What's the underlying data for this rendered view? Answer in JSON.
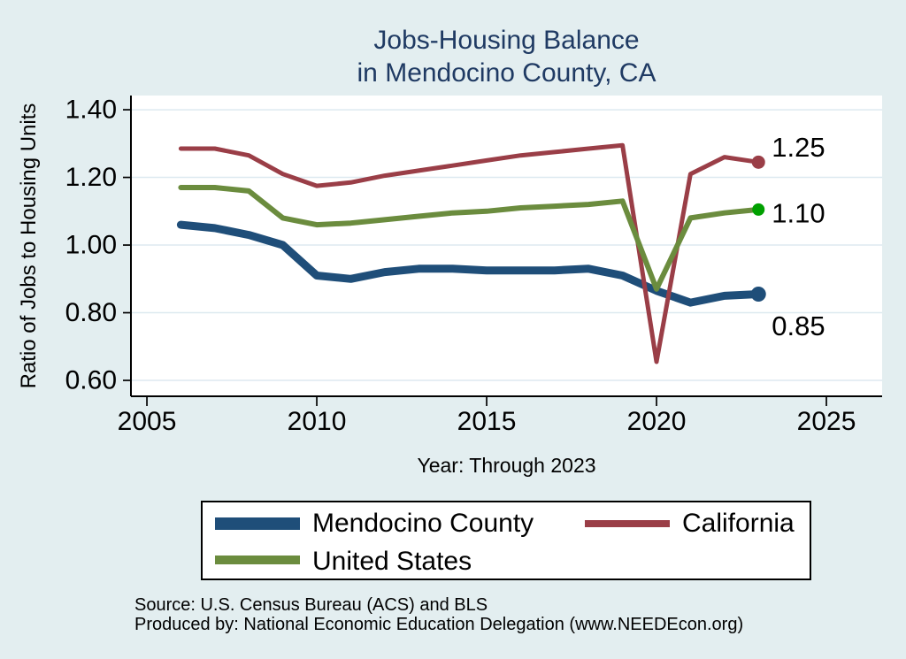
{
  "title": {
    "line1": "Jobs-Housing Balance",
    "line2": "in Mendocino County, CA"
  },
  "theme": {
    "background": "#e3eef0",
    "plot_background": "#ffffff",
    "title_color": "#1f3a63",
    "gridline_color": "#dde9f0",
    "axis_color": "#000000",
    "text_color": "#000000"
  },
  "chart_data": {
    "type": "line",
    "title": "Jobs-Housing Balance in Mendocino County, CA",
    "xlabel": "Year: Through 2023",
    "ylabel": "Ratio of Jobs to Housing Units",
    "x": [
      2006,
      2007,
      2008,
      2009,
      2010,
      2011,
      2012,
      2013,
      2014,
      2015,
      2016,
      2017,
      2018,
      2019,
      2020,
      2021,
      2022,
      2023
    ],
    "series": [
      {
        "id": "mendocino-county",
        "name": "Mendocino County",
        "color": "#1f4e79",
        "stroke_width": 9,
        "dot_color": "#1f4e79",
        "dot_radius": 8.5,
        "end_label": "0.85",
        "label_dy": 36,
        "values": [
          1.06,
          1.05,
          1.03,
          1.0,
          0.91,
          0.9,
          0.92,
          0.93,
          0.93,
          0.925,
          0.925,
          0.925,
          0.93,
          0.91,
          0.865,
          0.83,
          0.85,
          0.855
        ]
      },
      {
        "id": "california",
        "name": "California",
        "color": "#9a3e47",
        "stroke_width": 5,
        "dot_color": "#9a3e47",
        "dot_radius": 7.5,
        "end_label": "1.25",
        "label_dy": -17,
        "values": [
          1.285,
          1.285,
          1.265,
          1.21,
          1.175,
          1.185,
          1.205,
          1.22,
          1.235,
          1.25,
          1.265,
          1.275,
          1.285,
          1.295,
          0.655,
          1.21,
          1.26,
          1.245
        ]
      },
      {
        "id": "united-states",
        "name": "United States",
        "color": "#6b8c3e",
        "stroke_width": 6,
        "dot_color": "#00a000",
        "dot_radius": 7,
        "end_label": "1.10",
        "label_dy": 4,
        "values": [
          1.17,
          1.17,
          1.16,
          1.08,
          1.06,
          1.065,
          1.075,
          1.085,
          1.095,
          1.1,
          1.11,
          1.115,
          1.12,
          1.13,
          0.87,
          1.08,
          1.095,
          1.105
        ]
      }
    ],
    "xticks": [
      2005,
      2010,
      2015,
      2020,
      2025
    ],
    "yticks": [
      "1.40",
      "1.20",
      "1.00",
      "0.80",
      "0.60"
    ],
    "xlim": [
      2004.53,
      2026.64
    ],
    "ylim": [
      0.553,
      1.442
    ],
    "grid": true,
    "legend_position": "bottom"
  },
  "legend": {
    "items": [
      {
        "label": "Mendocino County"
      },
      {
        "label": "California"
      },
      {
        "label": "United States"
      }
    ]
  },
  "footnotes": {
    "line1": "Source: U.S. Census Bureau (ACS) and BLS",
    "line2": "Produced by: National Economic Education Delegation (www.NEEDEcon.org)"
  }
}
